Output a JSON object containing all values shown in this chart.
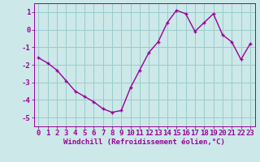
{
  "x": [
    0,
    1,
    2,
    3,
    4,
    5,
    6,
    7,
    8,
    9,
    10,
    11,
    12,
    13,
    14,
    15,
    16,
    17,
    18,
    19,
    20,
    21,
    22,
    23
  ],
  "y": [
    -1.6,
    -1.9,
    -2.3,
    -2.9,
    -3.5,
    -3.8,
    -4.1,
    -4.5,
    -4.7,
    -4.6,
    -3.3,
    -2.3,
    -1.3,
    -0.7,
    0.4,
    1.1,
    0.9,
    -0.1,
    0.4,
    0.9,
    -0.3,
    -0.7,
    -1.7,
    -0.8
  ],
  "line_color": "#990099",
  "marker": "+",
  "marker_size": 3,
  "bg_color": "#cce8e8",
  "grid_color": "#99cccc",
  "xlabel": "Windchill (Refroidissement éolien,°C)",
  "xlim": [
    -0.5,
    23.5
  ],
  "ylim": [
    -5.5,
    1.5
  ],
  "yticks": [
    1,
    0,
    -1,
    -2,
    -3,
    -4,
    -5
  ],
  "xticks": [
    0,
    1,
    2,
    3,
    4,
    5,
    6,
    7,
    8,
    9,
    10,
    11,
    12,
    13,
    14,
    15,
    16,
    17,
    18,
    19,
    20,
    21,
    22,
    23
  ],
  "xlabel_fontsize": 6.5,
  "tick_fontsize": 6.5,
  "line_width": 1.0
}
